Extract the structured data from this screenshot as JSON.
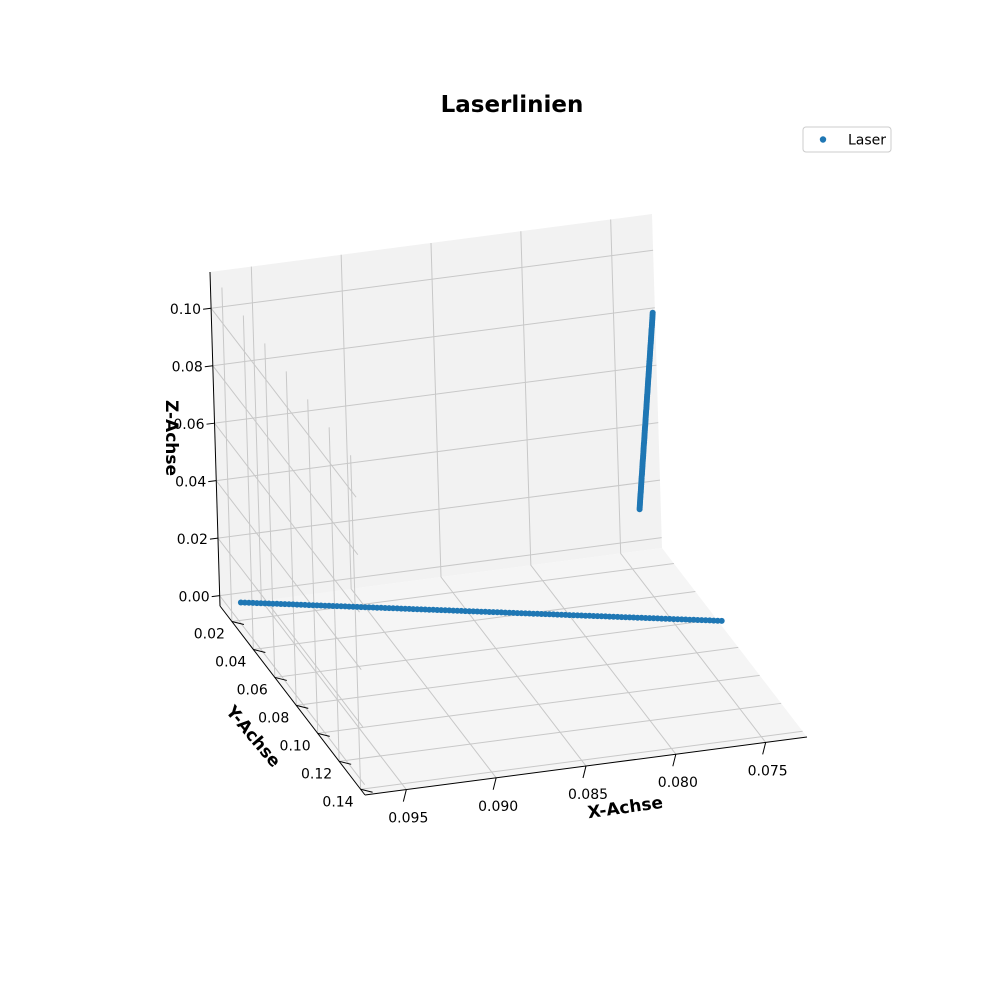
{
  "chart_data": {
    "type": "scatter",
    "projection": "3d",
    "title": "Laserlinien",
    "xlabel": "X-Achse",
    "ylabel": "Y-Achse",
    "zlabel": "Z-Achse",
    "x_ticks": [
      "0.095",
      "0.090",
      "0.085",
      "0.080",
      "0.075"
    ],
    "y_ticks": [
      "0.02",
      "0.04",
      "0.06",
      "0.08",
      "0.10",
      "0.12",
      "0.14"
    ],
    "z_ticks": [
      "0.00",
      "0.02",
      "0.04",
      "0.06",
      "0.08",
      "0.10"
    ],
    "xlim": [
      0.0727,
      0.0973
    ],
    "ylim": [
      0.0089,
      0.1441
    ],
    "zlim": [
      -0.0036,
      0.1126
    ],
    "grid": true,
    "legend": {
      "position": "top-right",
      "entries": [
        "Laser"
      ]
    },
    "color": "#1f77b4",
    "series": [
      {
        "name": "Laser",
        "segments": [
          {
            "from": [
              0.073,
              0.07,
              0.001
            ],
            "to": [
              0.0966,
              0.017,
              0.001
            ]
          },
          {
            "from": [
              0.074,
              0.011,
              0.012
            ],
            "to": [
              0.073,
              0.012,
              0.08
            ]
          }
        ]
      }
    ]
  }
}
